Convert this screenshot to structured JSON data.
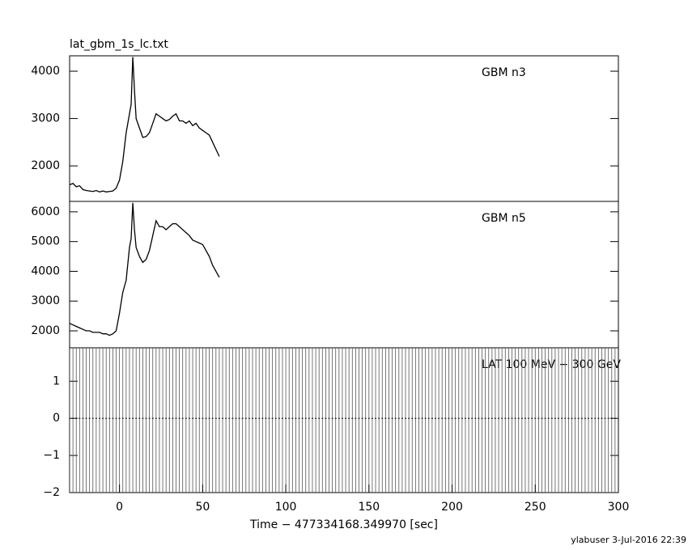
{
  "chart_data": [
    {
      "type": "line",
      "title": "lat_gbm_1s_lc.txt",
      "label": "GBM n3",
      "x": [
        -30,
        -28,
        -26,
        -24,
        -22,
        -20,
        -18,
        -16,
        -14,
        -12,
        -10,
        -8,
        -6,
        -4,
        -2,
        0,
        2,
        4,
        6,
        7,
        8,
        9,
        10,
        12,
        14,
        16,
        18,
        20,
        22,
        24,
        26,
        28,
        30,
        32,
        34,
        36,
        38,
        40,
        42,
        44,
        46,
        48,
        50,
        52,
        54,
        56,
        58,
        60
      ],
      "values": [
        1600,
        1630,
        1560,
        1580,
        1500,
        1480,
        1470,
        1460,
        1480,
        1450,
        1470,
        1450,
        1460,
        1470,
        1530,
        1700,
        2100,
        2700,
        3100,
        3300,
        4300,
        3600,
        3000,
        2800,
        2600,
        2620,
        2700,
        2900,
        3100,
        3050,
        3000,
        2950,
        2980,
        3050,
        3100,
        2950,
        2950,
        2900,
        2950,
        2850,
        2900,
        2800,
        2750,
        2700,
        2650,
        2500,
        2350,
        2200
      ],
      "color": "#000000",
      "xlim": [
        -30,
        300
      ],
      "ylim": [
        1250,
        4325
      ],
      "yticks": [
        2000,
        3000,
        4000
      ]
    },
    {
      "type": "line",
      "label": "GBM n5",
      "x": [
        -30,
        -28,
        -26,
        -24,
        -22,
        -20,
        -18,
        -16,
        -14,
        -12,
        -10,
        -8,
        -6,
        -4,
        -2,
        0,
        2,
        4,
        6,
        7,
        8,
        9,
        10,
        12,
        14,
        16,
        18,
        20,
        22,
        24,
        26,
        28,
        30,
        32,
        34,
        36,
        38,
        40,
        42,
        44,
        46,
        48,
        50,
        52,
        54,
        56,
        58,
        60
      ],
      "values": [
        2250,
        2200,
        2150,
        2100,
        2050,
        2000,
        2000,
        1950,
        1950,
        1950,
        1900,
        1900,
        1850,
        1900,
        2000,
        2600,
        3300,
        3700,
        4800,
        5100,
        6300,
        5400,
        4800,
        4500,
        4300,
        4400,
        4700,
        5200,
        5700,
        5500,
        5500,
        5400,
        5500,
        5600,
        5600,
        5500,
        5400,
        5300,
        5200,
        5050,
        5000,
        4950,
        4900,
        4700,
        4500,
        4200,
        4000,
        3800
      ],
      "color": "#000000",
      "xlim": [
        -30,
        300
      ],
      "ylim": [
        1430,
        6350
      ],
      "yticks": [
        2000,
        3000,
        4000,
        5000,
        6000
      ]
    },
    {
      "type": "errorbar",
      "label": "LAT 100 MeV − 300 GeV",
      "x": [
        -30,
        -28,
        -26,
        -24,
        -22,
        -20,
        -18,
        -16,
        -14,
        -12,
        -10,
        -8,
        -6,
        -4,
        -2,
        0,
        2,
        4,
        6,
        8,
        10,
        12,
        14,
        16,
        18,
        20,
        22,
        24,
        26,
        28,
        30,
        32,
        34,
        36,
        38,
        40,
        42,
        44,
        46,
        48,
        50,
        52,
        54,
        56,
        58,
        60,
        62,
        64,
        66,
        68,
        70,
        72,
        74,
        76,
        78,
        80,
        82,
        84,
        86,
        88,
        90,
        92,
        94,
        96,
        98,
        100,
        102,
        104,
        106,
        108,
        110,
        112,
        114,
        116,
        118,
        120,
        122,
        124,
        126,
        128,
        130,
        132,
        134,
        136,
        138,
        140,
        142,
        144,
        146,
        148,
        150,
        152,
        154,
        156,
        158,
        160,
        162,
        164,
        166,
        168,
        170,
        172,
        174,
        176,
        178,
        180,
        182,
        184,
        186,
        188,
        190,
        192,
        194,
        196,
        198,
        200,
        202,
        204,
        206,
        208,
        210,
        212,
        214,
        216,
        218,
        220,
        222,
        224,
        226,
        228,
        230,
        232,
        234,
        236,
        238,
        240,
        242,
        244,
        246,
        248,
        250,
        252,
        254,
        256,
        258,
        260,
        262,
        264,
        266,
        268,
        270,
        272,
        274,
        276,
        278,
        280,
        282,
        284,
        286,
        288,
        290,
        292,
        294,
        296,
        298
      ],
      "values": [
        0,
        0,
        0,
        0,
        0,
        0,
        0,
        0,
        0,
        0,
        0,
        0,
        0,
        0,
        0,
        0,
        0,
        0,
        0,
        0,
        0,
        0,
        0,
        0,
        0,
        0,
        0,
        0,
        0,
        0,
        0,
        0,
        0,
        0,
        0,
        0,
        0,
        0,
        0,
        0,
        0,
        0,
        0,
        0,
        0,
        0,
        0,
        0,
        0,
        0,
        0,
        0,
        0,
        0,
        0,
        0,
        0,
        0,
        0,
        0,
        0,
        0,
        0,
        0,
        0,
        0,
        0,
        0,
        0,
        0,
        0,
        0,
        0,
        0,
        0,
        0,
        0,
        0,
        0,
        0,
        0,
        0,
        0,
        0,
        0,
        0,
        0,
        0,
        0,
        0,
        0,
        0,
        0,
        0,
        0,
        0,
        0,
        0,
        0,
        0,
        0,
        0,
        0,
        0,
        0,
        0,
        0,
        0,
        0,
        0,
        0,
        0,
        0,
        0,
        0,
        0,
        0,
        0,
        0,
        0,
        0,
        0,
        0,
        0,
        0,
        0,
        0,
        0,
        0,
        0,
        0,
        0,
        0,
        0,
        0,
        0,
        0,
        0,
        0,
        0,
        0,
        0,
        0,
        0,
        0,
        0,
        0,
        0,
        0,
        0,
        0,
        0,
        0,
        0,
        0,
        0,
        0,
        0,
        0,
        0,
        0,
        0,
        0,
        0,
        0
      ],
      "error": 2,
      "color": "#000000",
      "xlim": [
        -30,
        300
      ],
      "ylim": [
        -2,
        1.9
      ],
      "yticks": [
        {
          "value": -2,
          "label": "−2"
        },
        {
          "value": -1,
          "label": "−1"
        },
        0,
        1
      ],
      "xticks": [
        0,
        50,
        100,
        150,
        200,
        250,
        300
      ],
      "xlabel": "Time − 477334168.349970 [sec]"
    }
  ],
  "footer": "ylabuser  3-Jul-2016 22:39"
}
